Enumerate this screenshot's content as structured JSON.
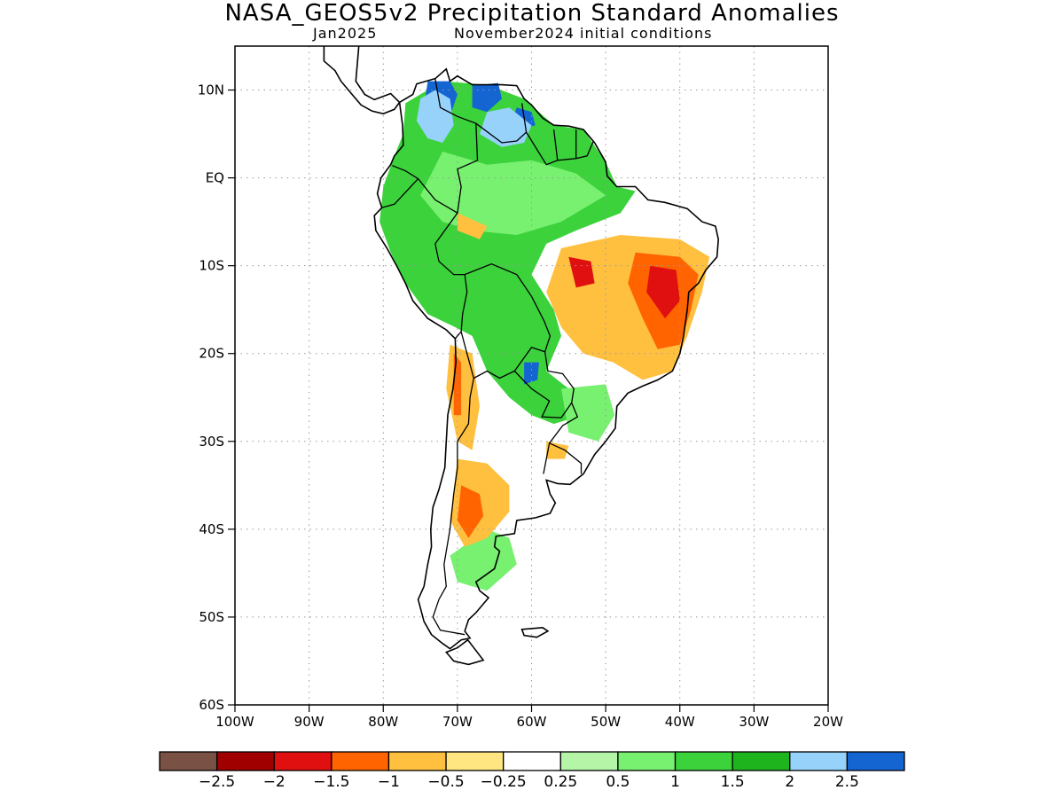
{
  "title": "NASA_GEOS5v2 Precipitation Standard Anomalies",
  "subtitle_left": "Jan2025",
  "subtitle_right": "November2024 initial conditions",
  "map": {
    "lon_range": [
      -100,
      -20
    ],
    "lat_range": [
      -60,
      15
    ],
    "lat_ticks": [
      {
        "value": 10,
        "label": "10N"
      },
      {
        "value": 0,
        "label": "EQ"
      },
      {
        "value": -10,
        "label": "10S"
      },
      {
        "value": -20,
        "label": "20S"
      },
      {
        "value": -30,
        "label": "30S"
      },
      {
        "value": -40,
        "label": "40S"
      },
      {
        "value": -50,
        "label": "50S"
      },
      {
        "value": -60,
        "label": "60S"
      }
    ],
    "lon_ticks": [
      {
        "value": -100,
        "label": "100W"
      },
      {
        "value": -90,
        "label": "90W"
      },
      {
        "value": -80,
        "label": "80W"
      },
      {
        "value": -70,
        "label": "70W"
      },
      {
        "value": -60,
        "label": "60W"
      },
      {
        "value": -50,
        "label": "50W"
      },
      {
        "value": -40,
        "label": "40W"
      },
      {
        "value": -30,
        "label": "30W"
      },
      {
        "value": -20,
        "label": "20W"
      }
    ],
    "gridlines": true
  },
  "colorbar": {
    "colors": [
      "#7a5145",
      "#a00000",
      "#e01010",
      "#ff6400",
      "#ffc040",
      "#ffe680",
      "#ffffff",
      "#b4f5a8",
      "#78f070",
      "#3cd23c",
      "#1eb41e",
      "#96d2fa",
      "#1464d2"
    ],
    "labels": [
      "−2.5",
      "−2",
      "−1.5",
      "−1",
      "−0.5",
      "−0.25",
      "0.25",
      "0.5",
      "1",
      "1.5",
      "2",
      "2.5"
    ]
  },
  "anomalies": [
    {
      "level": "2.5",
      "color": "#1464d2",
      "area": [
        [
          -74,
          11
        ],
        [
          -71,
          11
        ],
        [
          -70,
          9.5
        ],
        [
          -71,
          7
        ],
        [
          -73,
          6.5
        ],
        [
          -74.5,
          8
        ]
      ]
    },
    {
      "level": "2.5",
      "color": "#1464d2",
      "area": [
        [
          -68,
          10.5
        ],
        [
          -64.5,
          10.8
        ],
        [
          -64,
          9
        ],
        [
          -66,
          7.5
        ],
        [
          -68,
          8
        ]
      ]
    },
    {
      "level": "2.5",
      "color": "#1464d2",
      "area": [
        [
          -62,
          8
        ],
        [
          -60,
          7.5
        ],
        [
          -59.5,
          6
        ],
        [
          -61.5,
          5.5
        ],
        [
          -62.5,
          6.8
        ]
      ]
    },
    {
      "level": "2.5",
      "color": "#1464d2",
      "area": [
        [
          -61,
          -21
        ],
        [
          -59,
          -21
        ],
        [
          -59.2,
          -23
        ],
        [
          -61,
          -23.5
        ]
      ]
    },
    {
      "level": "2",
      "color": "#96d2fa",
      "area": [
        [
          -75,
          9
        ],
        [
          -73,
          10
        ],
        [
          -71,
          9
        ],
        [
          -70.5,
          6
        ],
        [
          -72,
          4
        ],
        [
          -74,
          4.5
        ],
        [
          -75.5,
          6.5
        ]
      ]
    },
    {
      "level": "2",
      "color": "#96d2fa",
      "area": [
        [
          -66,
          7.5
        ],
        [
          -63,
          8
        ],
        [
          -60,
          6
        ],
        [
          -61,
          4
        ],
        [
          -64,
          3.5
        ],
        [
          -67,
          5
        ]
      ]
    },
    {
      "level": "-0.5",
      "color": "#ffc040",
      "area": [
        [
          -56,
          -8
        ],
        [
          -48,
          -6.5
        ],
        [
          -40,
          -7
        ],
        [
          -36,
          -9
        ],
        [
          -37,
          -13
        ],
        [
          -39,
          -18
        ],
        [
          -41,
          -22
        ],
        [
          -45,
          -23
        ],
        [
          -49,
          -21
        ],
        [
          -53,
          -20
        ],
        [
          -56,
          -17
        ],
        [
          -58,
          -13
        ]
      ]
    },
    {
      "level": "-1",
      "color": "#ff6400",
      "area": [
        [
          -46,
          -8.5
        ],
        [
          -40,
          -9
        ],
        [
          -37.5,
          -11
        ],
        [
          -38.5,
          -15
        ],
        [
          -40,
          -19
        ],
        [
          -43,
          -19.5
        ],
        [
          -45,
          -16
        ],
        [
          -47,
          -12
        ]
      ]
    },
    {
      "level": "-1.5",
      "color": "#e01010",
      "area": [
        [
          -55,
          -9
        ],
        [
          -52,
          -9.5
        ],
        [
          -51.5,
          -12
        ],
        [
          -54,
          -12.5
        ]
      ]
    },
    {
      "level": "-1.5",
      "color": "#e01010",
      "area": [
        [
          -44,
          -10
        ],
        [
          -40.5,
          -10.5
        ],
        [
          -40,
          -14
        ],
        [
          -42,
          -16
        ],
        [
          -44.5,
          -13
        ]
      ]
    },
    {
      "level": "-0.5",
      "color": "#ffc040",
      "area": [
        [
          -71,
          -19
        ],
        [
          -68,
          -20
        ],
        [
          -67,
          -26
        ],
        [
          -68,
          -31
        ],
        [
          -70,
          -30
        ],
        [
          -71.5,
          -24
        ]
      ]
    },
    {
      "level": "-1",
      "color": "#ff6400",
      "area": [
        [
          -70.5,
          -20
        ],
        [
          -69.5,
          -21
        ],
        [
          -69.5,
          -27
        ],
        [
          -70.5,
          -27
        ]
      ]
    },
    {
      "level": "-0.5",
      "color": "#ffc040",
      "area": [
        [
          -70,
          -32
        ],
        [
          -66,
          -32.5
        ],
        [
          -63,
          -35
        ],
        [
          -63,
          -38
        ],
        [
          -66,
          -41
        ],
        [
          -69,
          -42
        ],
        [
          -71,
          -39
        ]
      ]
    },
    {
      "level": "-1",
      "color": "#ff6400",
      "area": [
        [
          -69.5,
          -35
        ],
        [
          -67,
          -36
        ],
        [
          -66.5,
          -38.5
        ],
        [
          -68.5,
          -41
        ],
        [
          -70,
          -39
        ]
      ]
    },
    {
      "level": "-0.5",
      "color": "#ffc040",
      "area": [
        [
          -58,
          -30
        ],
        [
          -55,
          -30.5
        ],
        [
          -55.5,
          -32
        ],
        [
          -58,
          -32
        ]
      ]
    },
    {
      "level": "-0.5",
      "color": "#ffc040",
      "area": [
        [
          -70,
          -4
        ],
        [
          -66,
          -5.5
        ],
        [
          -67,
          -7
        ],
        [
          -70,
          -6
        ]
      ]
    }
  ]
}
